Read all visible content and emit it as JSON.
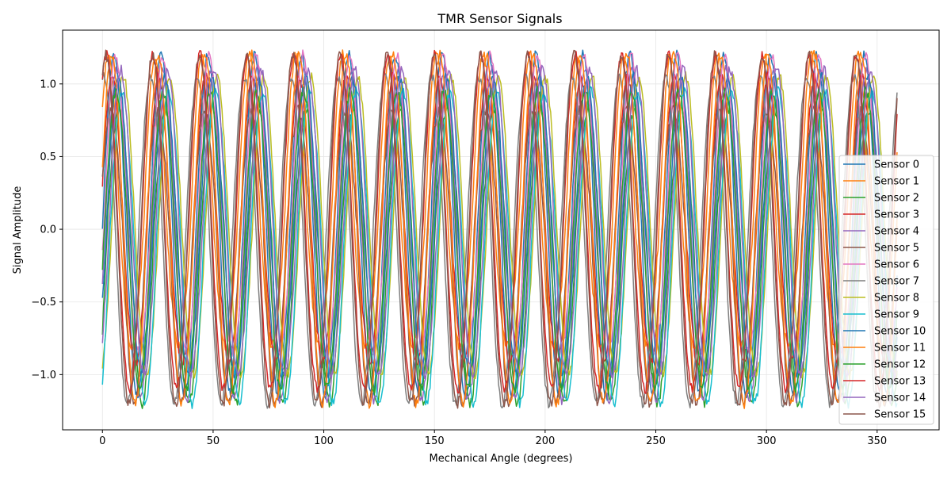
{
  "chart_data": {
    "type": "line",
    "title": "TMR Sensor Signals",
    "xlabel": "Mechanical Angle (degrees)",
    "ylabel": "Signal Amplitude",
    "xlim": [
      -18,
      378
    ],
    "ylim": [
      -1.38,
      1.37
    ],
    "xticks": [
      0,
      50,
      100,
      150,
      200,
      250,
      300,
      350
    ],
    "yticks": [
      -1.0,
      -0.5,
      0.0,
      0.5,
      1.0
    ],
    "xtick_labels": [
      "0",
      "50",
      "100",
      "150",
      "200",
      "250",
      "300",
      "350"
    ],
    "ytick_labels": [
      "−1.0",
      "−0.5",
      "0.0",
      "0.5",
      "1.0"
    ],
    "grid": true,
    "legend_position": "right",
    "x_range": [
      0,
      359
    ],
    "cycles": 17,
    "series": [
      {
        "name": "Sensor 0",
        "color": "#1f77b4",
        "phase_deg": 0,
        "amp_pos": 1.2,
        "amp_neg": 1.15
      },
      {
        "name": "Sensor 1",
        "color": "#ff7f0e",
        "phase_deg": 45,
        "amp_pos": 1.2,
        "amp_neg": 0.8
      },
      {
        "name": "Sensor 2",
        "color": "#2ca02c",
        "phase_deg": 324,
        "amp_pos": 0.82,
        "amp_neg": 1.2
      },
      {
        "name": "Sensor 3",
        "color": "#d62728",
        "phase_deg": 18,
        "amp_pos": 1.05,
        "amp_neg": 0.92
      },
      {
        "name": "Sensor 4",
        "color": "#9467bd",
        "phase_deg": 340,
        "amp_pos": 1.1,
        "amp_neg": 1.18
      },
      {
        "name": "Sensor 5",
        "color": "#8c564b",
        "phase_deg": 25,
        "amp_pos": 0.82,
        "amp_neg": 1.2
      },
      {
        "name": "Sensor 6",
        "color": "#e377c2",
        "phase_deg": 350,
        "amp_pos": 1.2,
        "amp_neg": 0.85
      },
      {
        "name": "Sensor 7",
        "color": "#7f7f7f",
        "phase_deg": 80,
        "amp_pos": 1.05,
        "amp_neg": 1.2
      },
      {
        "name": "Sensor 8",
        "color": "#bcbd22",
        "phase_deg": 290,
        "amp_pos": 1.05,
        "amp_neg": 1.0
      },
      {
        "name": "Sensor 9",
        "color": "#17becf",
        "phase_deg": 300,
        "amp_pos": 0.95,
        "amp_neg": 1.2
      },
      {
        "name": "Sensor 10",
        "color": "#1f77b4",
        "phase_deg": 330,
        "amp_pos": 1.05,
        "amp_neg": 1.0
      },
      {
        "name": "Sensor 11",
        "color": "#ff7f0e",
        "phase_deg": 20,
        "amp_pos": 1.2,
        "amp_neg": 1.2
      },
      {
        "name": "Sensor 12",
        "color": "#2ca02c",
        "phase_deg": 345,
        "amp_pos": 0.95,
        "amp_neg": 1.1
      },
      {
        "name": "Sensor 13",
        "color": "#d62728",
        "phase_deg": 60,
        "amp_pos": 1.2,
        "amp_neg": 1.1
      },
      {
        "name": "Sensor 14",
        "color": "#9467bd",
        "phase_deg": 310,
        "amp_pos": 1.1,
        "amp_neg": 1.0
      },
      {
        "name": "Sensor 15",
        "color": "#8c564b",
        "phase_deg": 65,
        "amp_pos": 1.2,
        "amp_neg": 1.2
      }
    ]
  }
}
